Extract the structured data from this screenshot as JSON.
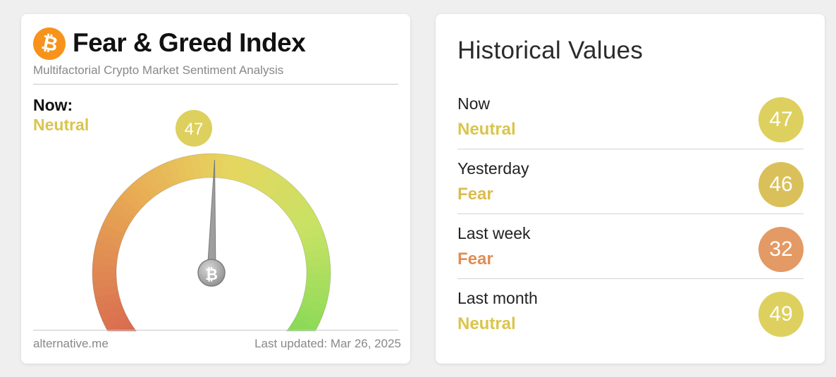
{
  "card": {
    "title": "Fear & Greed Index",
    "subtitle": "Multifactorial Crypto Market Sentiment Analysis",
    "logo_icon": "bitcoin-icon",
    "now_label": "Now:",
    "now_classification": "Neutral",
    "value": "47",
    "gauge": {
      "value": 47,
      "min": 0,
      "max": 100
    },
    "footer": {
      "source": "alternative.me",
      "last_updated": "Last updated: Mar 26, 2025"
    }
  },
  "historical": {
    "title": "Historical Values",
    "rows": [
      {
        "period": "Now",
        "classification": "Neutral",
        "value": "47",
        "color": "#ddd05e"
      },
      {
        "period": "Yesterday",
        "classification": "Fear",
        "value": "46",
        "color": "#d9c05a"
      },
      {
        "period": "Last week",
        "classification": "Fear",
        "value": "32",
        "color": "#e39a64"
      },
      {
        "period": "Last month",
        "classification": "Neutral",
        "value": "49",
        "color": "#ddd05e"
      }
    ]
  },
  "colors": {
    "neutral": "#d9c54d",
    "fear": "#dcbc4f",
    "fear_strong": "#e08d55",
    "bitcoin": "#f7931a"
  }
}
